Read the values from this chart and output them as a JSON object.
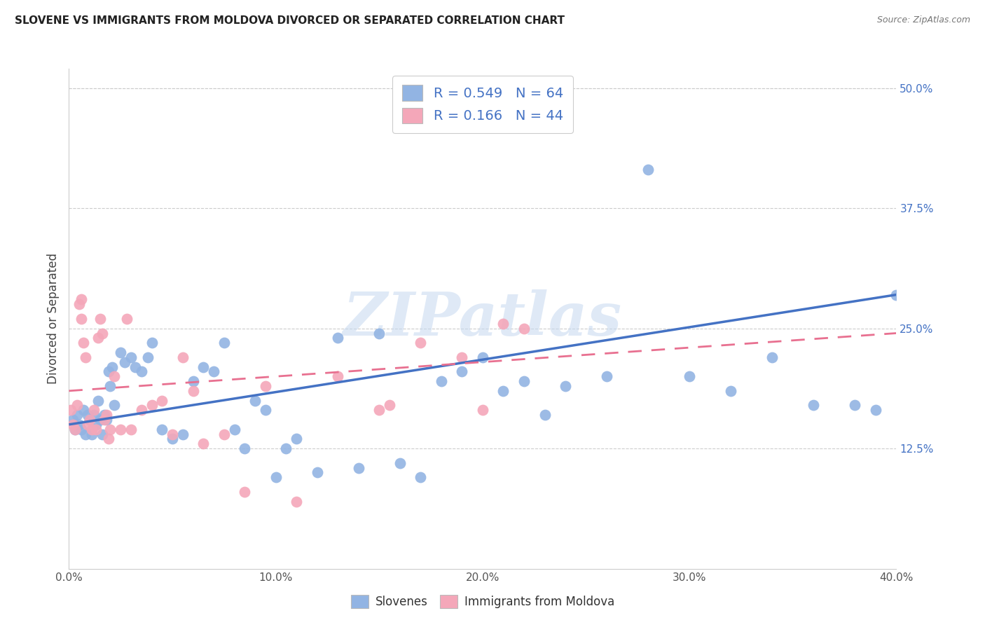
{
  "title": "SLOVENE VS IMMIGRANTS FROM MOLDOVA DIVORCED OR SEPARATED CORRELATION CHART",
  "source": "Source: ZipAtlas.com",
  "xlim": [
    0.0,
    40.0
  ],
  "ylim": [
    0.0,
    52.0
  ],
  "xlabel_vals": [
    0.0,
    10.0,
    20.0,
    30.0,
    40.0
  ],
  "ylabel_vals": [
    12.5,
    25.0,
    37.5,
    50.0
  ],
  "blue_color": "#92b4e3",
  "pink_color": "#f4a7b9",
  "trend_blue": "#4472c4",
  "trend_pink": "#e87090",
  "r1": "0.549",
  "n1": "64",
  "r2": "0.166",
  "n2": "44",
  "label1": "Slovenes",
  "label2": "Immigrants from Moldova",
  "ylabel": "Divorced or Separated",
  "watermark": "ZIPatlas",
  "blue_trend_start": 15.0,
  "blue_trend_end": 28.5,
  "pink_trend_start": 18.5,
  "pink_trend_end": 24.5,
  "blue_x": [
    0.2,
    0.3,
    0.4,
    0.5,
    0.6,
    0.7,
    0.8,
    0.9,
    1.0,
    1.1,
    1.2,
    1.3,
    1.4,
    1.5,
    1.6,
    1.7,
    1.8,
    1.9,
    2.0,
    2.1,
    2.2,
    2.5,
    2.7,
    3.0,
    3.2,
    3.5,
    3.8,
    4.0,
    4.5,
    5.0,
    5.5,
    6.0,
    6.5,
    7.0,
    7.5,
    8.0,
    8.5,
    9.0,
    9.5,
    10.0,
    10.5,
    11.0,
    12.0,
    13.0,
    14.0,
    15.0,
    16.0,
    17.0,
    18.0,
    19.0,
    20.0,
    21.0,
    22.0,
    23.0,
    24.0,
    26.0,
    28.0,
    30.0,
    32.0,
    34.0,
    36.0,
    38.0,
    39.0,
    40.0
  ],
  "blue_y": [
    15.5,
    14.5,
    16.0,
    15.0,
    14.5,
    16.5,
    14.0,
    16.0,
    15.5,
    14.0,
    16.0,
    15.0,
    17.5,
    15.5,
    14.0,
    16.0,
    15.5,
    20.5,
    19.0,
    21.0,
    17.0,
    22.5,
    21.5,
    22.0,
    21.0,
    20.5,
    22.0,
    23.5,
    14.5,
    13.5,
    14.0,
    19.5,
    21.0,
    20.5,
    23.5,
    14.5,
    12.5,
    17.5,
    16.5,
    9.5,
    12.5,
    13.5,
    10.0,
    24.0,
    10.5,
    24.5,
    11.0,
    9.5,
    19.5,
    20.5,
    22.0,
    18.5,
    19.5,
    16.0,
    19.0,
    20.0,
    41.5,
    20.0,
    18.5,
    22.0,
    17.0,
    17.0,
    16.5,
    28.5
  ],
  "pink_x": [
    0.1,
    0.2,
    0.3,
    0.4,
    0.5,
    0.6,
    0.6,
    0.7,
    0.8,
    0.9,
    1.0,
    1.1,
    1.2,
    1.3,
    1.4,
    1.5,
    1.6,
    1.7,
    1.8,
    1.9,
    2.0,
    2.2,
    2.5,
    2.8,
    3.0,
    3.5,
    4.0,
    4.5,
    5.0,
    5.5,
    6.0,
    6.5,
    7.5,
    8.5,
    9.5,
    11.0,
    13.0,
    15.5,
    17.0,
    19.0,
    20.0,
    21.0,
    15.0,
    22.0
  ],
  "pink_y": [
    16.5,
    15.0,
    14.5,
    17.0,
    27.5,
    26.0,
    28.0,
    23.5,
    22.0,
    15.0,
    15.5,
    14.5,
    16.5,
    14.5,
    24.0,
    26.0,
    24.5,
    15.5,
    16.0,
    13.5,
    14.5,
    20.0,
    14.5,
    26.0,
    14.5,
    16.5,
    17.0,
    17.5,
    14.0,
    22.0,
    18.5,
    13.0,
    14.0,
    8.0,
    19.0,
    7.0,
    20.0,
    17.0,
    23.5,
    22.0,
    16.5,
    25.5,
    16.5,
    25.0
  ]
}
